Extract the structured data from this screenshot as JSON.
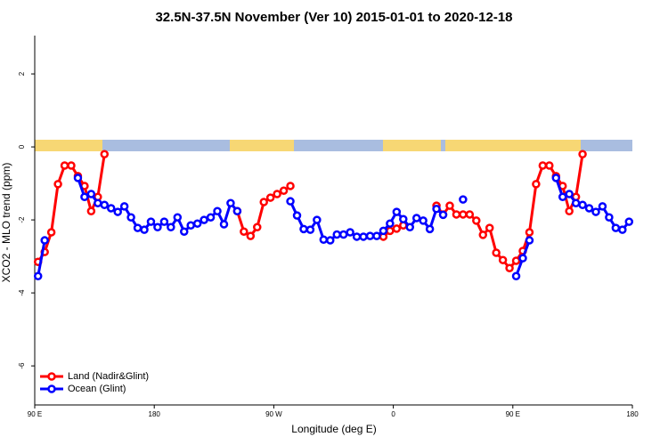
{
  "chart_data": {
    "type": "line",
    "title": "32.5N-37.5N November (Ver 10)   2015-01-01 to 2020-12-18",
    "x_label": "Longitude (deg E)",
    "y_label": "XCO2 - MLO trend (ppm)",
    "xlim": [
      90,
      540
    ],
    "xticks": [
      {
        "value": 90,
        "label": "90 E"
      },
      {
        "value": 180,
        "label": "180"
      },
      {
        "value": 270,
        "label": "90 W"
      },
      {
        "value": 360,
        "label": "0"
      },
      {
        "value": 450,
        "label": "90 E"
      },
      {
        "value": 540,
        "label": "180"
      }
    ],
    "ylim": [
      -7.07,
      3.05
    ],
    "yticks": [
      -6,
      -4,
      -2,
      0,
      2
    ],
    "legend": "bottom-left",
    "series": [
      {
        "name": "Land (Nadir&Glint)",
        "color": "#ff0000",
        "x": [
          92.5,
          97.5,
          102.5,
          107.5,
          112.5,
          117.5,
          122.5,
          127.5,
          132.5,
          137.5,
          142.5,
          null,
          242.5,
          247.5,
          252.5,
          257.5,
          262.5,
          267.5,
          272.5,
          277.5,
          282.5,
          null,
          352.5,
          357.5,
          362.5,
          367.5,
          null,
          392.5,
          397.5,
          402.5,
          407.5,
          412.5,
          417.5,
          422.5,
          427.5,
          432.5,
          437.5,
          442.5,
          447.5,
          452.5,
          457.5,
          462.5,
          467.5,
          472.5,
          477.5,
          482.5,
          487.5,
          492.5,
          497.5,
          502.5
        ],
        "values": [
          -3.15,
          -2.88,
          -2.34,
          -1.02,
          -0.51,
          -0.51,
          -0.8,
          -1.07,
          -1.76,
          -1.37,
          -0.2,
          null,
          -1.76,
          -2.32,
          -2.44,
          -2.2,
          -1.51,
          -1.39,
          -1.29,
          -1.2,
          -1.07,
          null,
          -2.46,
          -2.3,
          -2.24,
          -2.15,
          null,
          -1.61,
          -1.85,
          -1.61,
          -1.85,
          -1.85,
          -1.85,
          -2.02,
          -2.41,
          -2.22,
          -2.9,
          -3.1,
          -3.32,
          -3.12,
          -2.85,
          -2.34,
          -1.02,
          -0.51,
          -0.51,
          -0.8,
          -1.07,
          -1.76,
          -1.37,
          -0.2
        ]
      },
      {
        "name": "Ocean (Glint)",
        "color": "#0000ff",
        "x": [
          92.5,
          97.5,
          null,
          122.5,
          127.5,
          132.5,
          137.5,
          142.5,
          147.5,
          152.5,
          157.5,
          162.5,
          167.5,
          172.5,
          177.5,
          182.5,
          187.5,
          192.5,
          197.5,
          202.5,
          207.5,
          212.5,
          217.5,
          222.5,
          227.5,
          232.5,
          237.5,
          242.5,
          null,
          282.5,
          287.5,
          292.5,
          297.5,
          302.5,
          307.5,
          312.5,
          317.5,
          322.5,
          327.5,
          332.5,
          337.5,
          342.5,
          347.5,
          352.5,
          357.5,
          362.5,
          367.5,
          372.5,
          377.5,
          382.5,
          387.5,
          392.5,
          397.5,
          null,
          412.5,
          null,
          452.5,
          457.5,
          462.5,
          null,
          482.5,
          487.5,
          492.5,
          497.5,
          502.5,
          507.5,
          512.5,
          517.5,
          522.5,
          527.5,
          532.5,
          537.5
        ],
        "values": [
          -3.54,
          -2.56,
          null,
          -0.85,
          -1.37,
          -1.29,
          -1.54,
          -1.59,
          -1.68,
          -1.78,
          -1.63,
          -1.93,
          -2.22,
          -2.27,
          -2.05,
          -2.2,
          -2.05,
          -2.2,
          -1.93,
          -2.32,
          -2.15,
          -2.1,
          -2.0,
          -1.93,
          -1.76,
          -2.12,
          -1.54,
          -1.76,
          null,
          -1.49,
          -1.88,
          -2.25,
          -2.27,
          -2.0,
          -2.54,
          -2.56,
          -2.4,
          -2.4,
          -2.34,
          -2.46,
          -2.46,
          -2.44,
          -2.44,
          -2.3,
          -2.1,
          -1.78,
          -1.98,
          -2.2,
          -1.95,
          -2.02,
          -2.25,
          -1.7,
          -1.86,
          null,
          -1.44,
          null,
          -3.54,
          -3.05,
          -2.56,
          null,
          -0.85,
          -1.37,
          -1.29,
          -1.54,
          -1.59,
          -1.68,
          -1.78,
          -1.63,
          -1.93,
          -2.22,
          -2.27,
          -2.05
        ]
      }
    ]
  }
}
